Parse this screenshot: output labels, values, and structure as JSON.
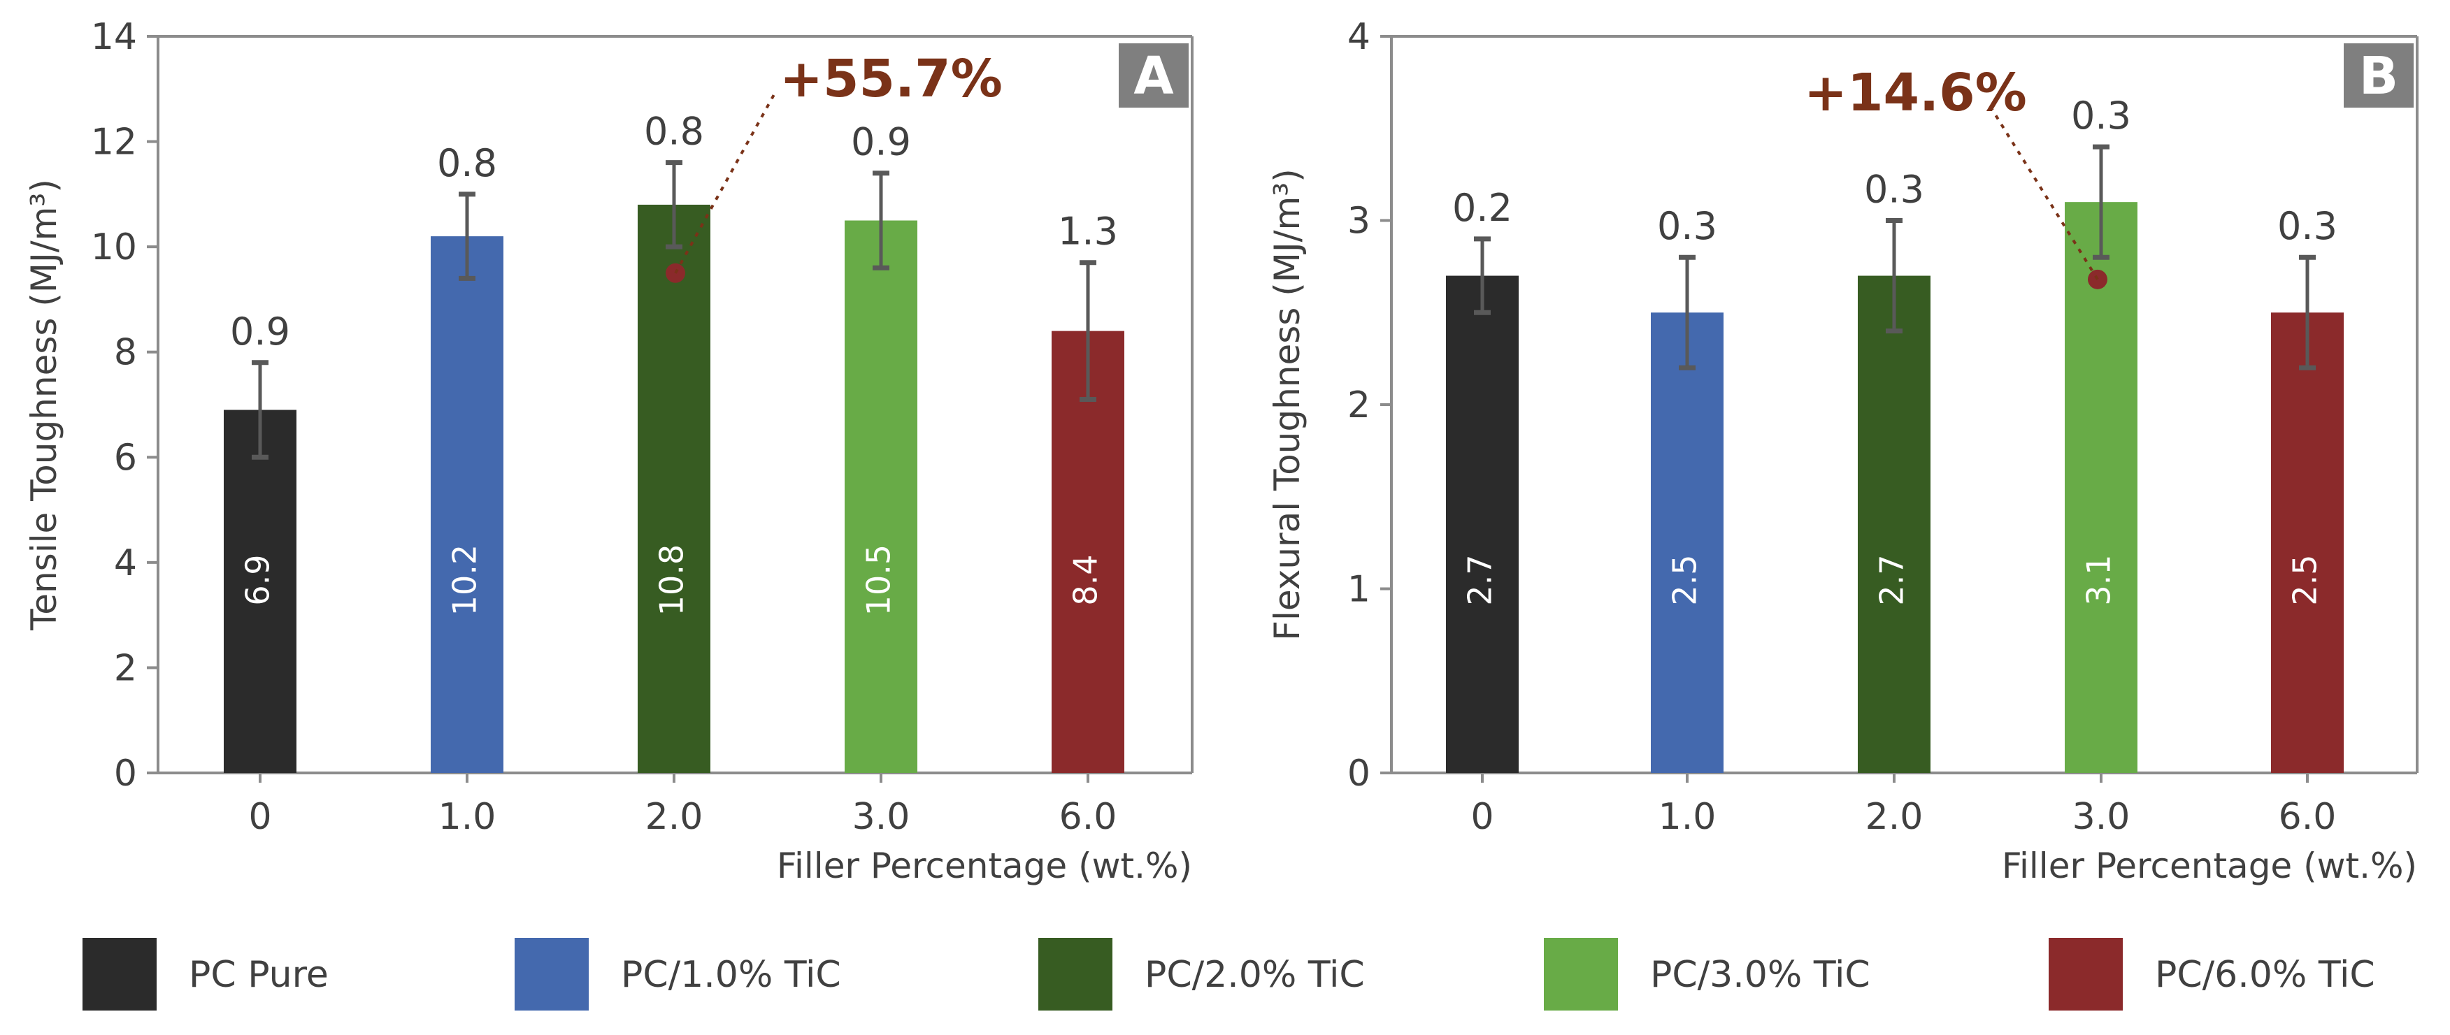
{
  "colors": {
    "series": [
      "#2b2b2b",
      "#4469ae",
      "#375c22",
      "#68ab47",
      "#8b2a2b"
    ],
    "axis": "#8c8c8c",
    "errorbar": "#595959",
    "annotation": "#7a3218",
    "panel_badge": "#7f7f7f",
    "text": "#404040"
  },
  "legend": {
    "placement": "bottom",
    "items": [
      "PC Pure",
      "PC/1.0% TiC",
      "PC/2.0% TiC",
      "PC/3.0% TiC",
      "PC/6.0% TiC"
    ]
  },
  "chart_data": [
    {
      "type": "bar",
      "panel": "A",
      "xlabel": "Filler Percentage (wt.%)",
      "ylabel": "Tensile Toughness (MJ/m³)",
      "ylim": [
        0,
        14
      ],
      "yticks": [
        0,
        2,
        4,
        6,
        8,
        10,
        12,
        14
      ],
      "grid": false,
      "categories": [
        "0",
        "1.0",
        "2.0",
        "3.0",
        "6.0"
      ],
      "values": [
        6.9,
        10.2,
        10.8,
        10.5,
        8.4
      ],
      "value_labels": [
        "6.9",
        "10.2",
        "10.8",
        "10.5",
        "8.4"
      ],
      "errors": [
        0.9,
        0.8,
        0.8,
        0.9,
        1.3
      ],
      "error_labels": [
        "0.9",
        "0.8",
        "0.8",
        "0.9",
        "1.3"
      ],
      "annotation": {
        "text": "+55.7%",
        "category_index": 2,
        "y": 9.5
      }
    },
    {
      "type": "bar",
      "panel": "B",
      "xlabel": "Filler Percentage (wt.%)",
      "ylabel": "Flexural Toughness (MJ/m³)",
      "ylim": [
        0,
        4
      ],
      "yticks": [
        0,
        1,
        2,
        3,
        4
      ],
      "grid": false,
      "categories": [
        "0",
        "1.0",
        "2.0",
        "3.0",
        "6.0"
      ],
      "values": [
        2.7,
        2.5,
        2.7,
        3.1,
        2.5
      ],
      "value_labels": [
        "2.7",
        "2.5",
        "2.7",
        "3.1",
        "2.5"
      ],
      "errors": [
        0.2,
        0.3,
        0.3,
        0.3,
        0.3
      ],
      "error_labels": [
        "0.2",
        "0.3",
        "0.3",
        "0.3",
        "0.3"
      ],
      "annotation": {
        "text": "+14.6%",
        "category_index": 3,
        "y": 2.68
      }
    }
  ]
}
